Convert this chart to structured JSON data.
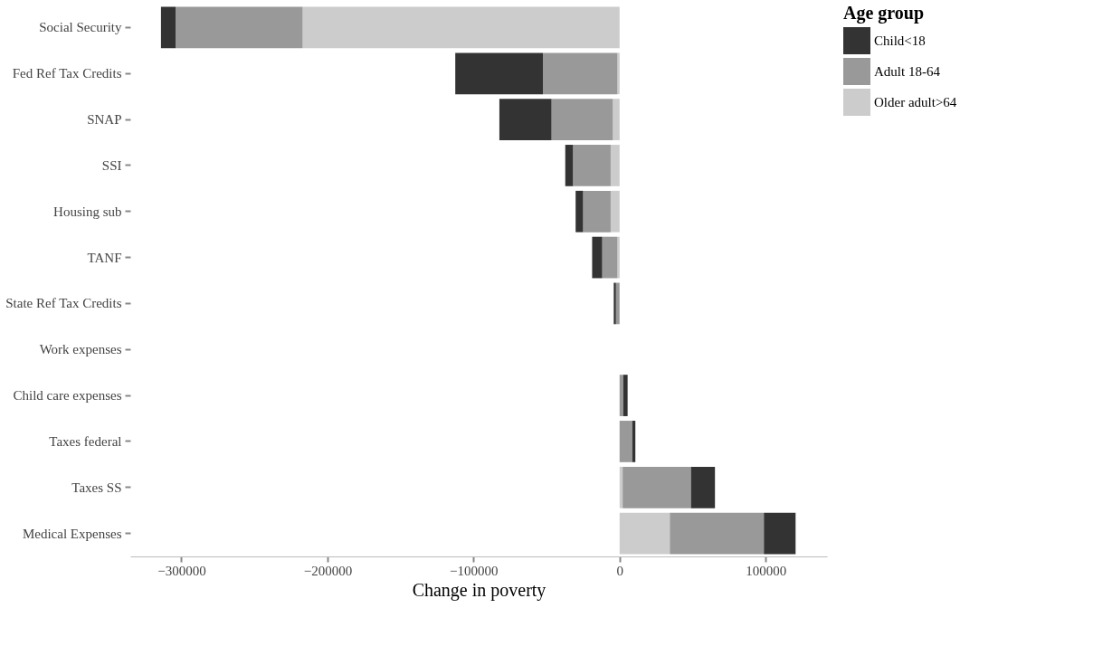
{
  "chart_data": {
    "type": "bar",
    "orientation": "horizontal",
    "stacked": true,
    "categories": [
      "Social Security",
      "Fed Ref Tax Credits",
      "SNAP",
      "SSI",
      "Housing sub",
      "TANF",
      "State Ref Tax Credits",
      "Work expenses",
      "Child care expenses",
      "Taxes federal",
      "Taxes SS",
      "Medical Expenses"
    ],
    "series": [
      {
        "name": "Older adult>64",
        "color": "#cccccc",
        "values": [
          -217000,
          -1500,
          -4600,
          -6100,
          -6100,
          -1500,
          null,
          null,
          null,
          null,
          2100,
          34400
        ]
      },
      {
        "name": "Adult 18-64",
        "color": "#999999",
        "values": [
          -87000,
          -51000,
          -42000,
          -25800,
          -18900,
          -10400,
          -2500,
          null,
          2500,
          8700,
          46800,
          64400
        ]
      },
      {
        "name": "Child<18",
        "color": "#333333",
        "values": [
          -10000,
          -60000,
          -35700,
          -5300,
          -5100,
          -6900,
          -1500,
          null,
          3000,
          2100,
          16400,
          21700
        ]
      }
    ],
    "xlabel": "Change in poverty",
    "legend_title": "Age group",
    "xlim": [
      -335000,
      142000
    ],
    "xticks": [
      -300000,
      -200000,
      -100000,
      0,
      100000
    ],
    "grid": false,
    "legend": "right"
  }
}
